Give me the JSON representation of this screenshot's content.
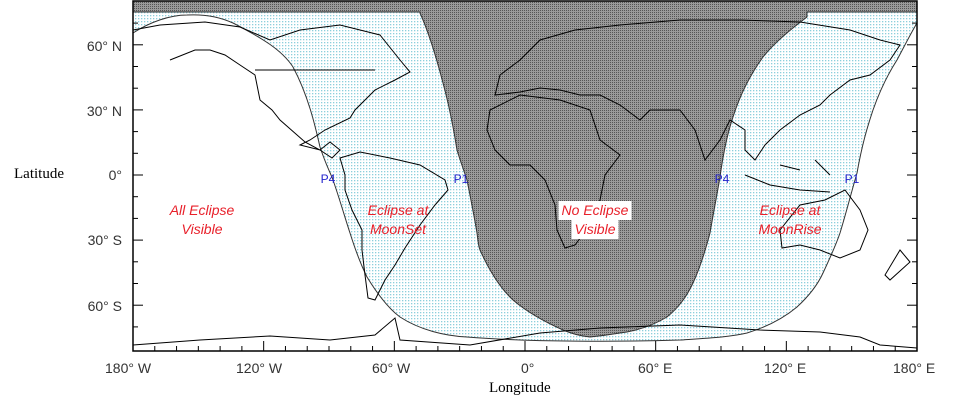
{
  "axes": {
    "ylabel": "Latitude",
    "xlabel": "Longitude",
    "yticks": [
      "60° N",
      "30° N",
      "0°",
      "30° S",
      "60° S"
    ],
    "xticks": [
      "180° W",
      "120° W",
      "60° W",
      "0°",
      "60° E",
      "120° E",
      "180° E"
    ]
  },
  "regions": {
    "all_visible": [
      "All Eclipse",
      "Visible"
    ],
    "moonset": [
      "Eclipse at",
      "MoonSet"
    ],
    "none": [
      "No Eclipse",
      "Visible"
    ],
    "moonrise": [
      "Eclipse at",
      "MoonRise"
    ]
  },
  "contacts": [
    "P4",
    "P1",
    "P4",
    "P1"
  ],
  "colors": {
    "region_label": "#e8202a",
    "contact_label": "#2222cc",
    "partial_dots": "#8ccfdc",
    "no_eclipse_fill": "#8a8a8a"
  }
}
